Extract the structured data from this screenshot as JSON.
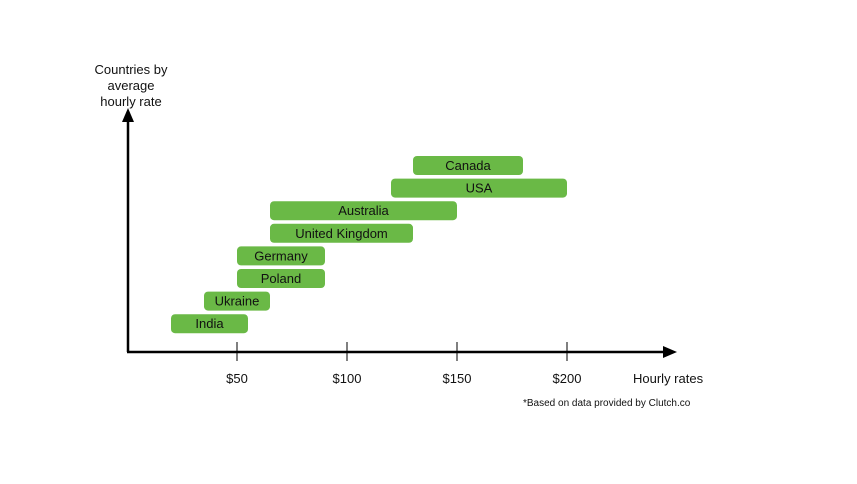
{
  "chart_data": {
    "type": "bar",
    "orientation": "horizontal-range",
    "y_axis_title_lines": [
      "Countries by",
      "average",
      "hourly rate"
    ],
    "x_axis_title": "Hourly rates",
    "footnote": "*Based on data provided by Clutch.co",
    "x_ticks": [
      {
        "value": 50,
        "label": "$50"
      },
      {
        "value": 100,
        "label": "$100"
      },
      {
        "value": 150,
        "label": "$150"
      },
      {
        "value": 200,
        "label": "$200"
      }
    ],
    "bar_color": "#6ab946",
    "series": [
      {
        "country": "Canada",
        "min": 130,
        "max": 180
      },
      {
        "country": "USA",
        "min": 120,
        "max": 200
      },
      {
        "country": "Australia",
        "min": 65,
        "max": 150
      },
      {
        "country": "United Kingdom",
        "min": 65,
        "max": 130
      },
      {
        "country": "Germany",
        "min": 50,
        "max": 90
      },
      {
        "country": "Poland",
        "min": 50,
        "max": 90
      },
      {
        "country": "Ukraine",
        "min": 35,
        "max": 65
      },
      {
        "country": "India",
        "min": 20,
        "max": 55
      }
    ]
  }
}
